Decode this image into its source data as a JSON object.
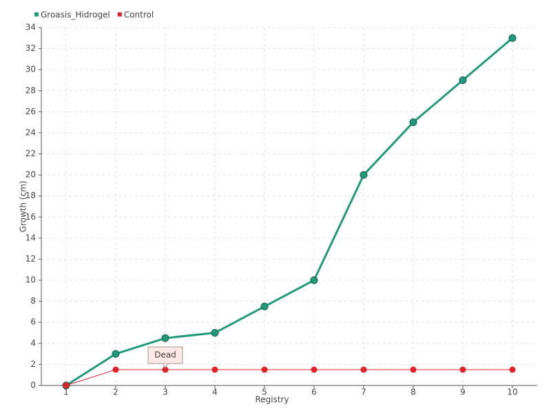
{
  "chart_data": {
    "type": "line",
    "x_label": "Registry",
    "y_label": "Growth (cm)",
    "categories": [
      "1",
      "2",
      "3",
      "4",
      "5",
      "6",
      "7",
      "8",
      "9",
      "10"
    ],
    "series": [
      {
        "name": "Groasis_Hidrogel",
        "color": "#1f9a7b",
        "values": [
          0,
          3,
          4.5,
          5,
          7.5,
          10,
          20,
          25,
          29,
          33
        ]
      },
      {
        "name": "Control",
        "color": "#e3202b",
        "values": [
          0,
          1.5,
          1.5,
          1.5,
          1.5,
          1.5,
          1.5,
          1.5,
          1.5,
          1.5
        ]
      }
    ],
    "annotation": "Dead",
    "ylim": [
      0,
      34
    ],
    "yticks": [
      0,
      2,
      4,
      6,
      8,
      10,
      12,
      14,
      16,
      18,
      20,
      22,
      24,
      26,
      28,
      30,
      32,
      34
    ],
    "grid": true,
    "legend": "top-left"
  }
}
